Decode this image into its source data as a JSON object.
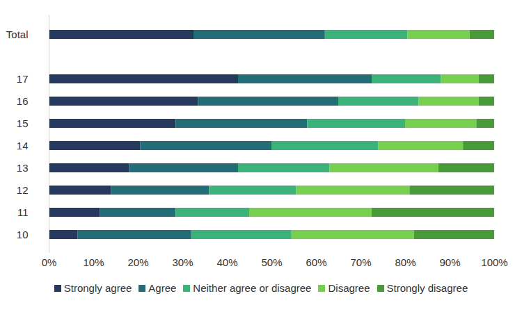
{
  "chart_data": {
    "type": "bar",
    "orientation": "horizontal",
    "stacked": true,
    "grid": false,
    "legend": "bottom",
    "categories": [
      "Total",
      null,
      "17",
      "16",
      "15",
      "14",
      "13",
      "12",
      "11",
      "10"
    ],
    "xlim": [
      0,
      100
    ],
    "xticks": [
      {
        "value": 0,
        "label": "0%"
      },
      {
        "value": 10,
        "label": "10%"
      },
      {
        "value": 20,
        "label": "20%"
      },
      {
        "value": 30,
        "label": "30%"
      },
      {
        "value": 40,
        "label": "40%"
      },
      {
        "value": 50,
        "label": "50%"
      },
      {
        "value": 60,
        "label": "60%"
      },
      {
        "value": 70,
        "label": "70%"
      },
      {
        "value": 80,
        "label": "80%"
      },
      {
        "value": 90,
        "label": "90%"
      },
      {
        "value": 100,
        "label": "100%"
      }
    ],
    "series": [
      {
        "name": "Strongly agree",
        "color": "#263a5e",
        "values": [
          32.5,
          null,
          42.5,
          33.5,
          28.5,
          20.5,
          18,
          14,
          11.5,
          6.5
        ]
      },
      {
        "name": "Agree",
        "color": "#236e76",
        "values": [
          29.5,
          null,
          30,
          31.5,
          29.5,
          29.5,
          24.5,
          22,
          17,
          25.5
        ]
      },
      {
        "name": "Neither agree or disagree",
        "color": "#3bb37a",
        "values": [
          18.5,
          null,
          15.5,
          18,
          22,
          24,
          20.5,
          19.5,
          16.5,
          22.5
        ]
      },
      {
        "name": "Disagree",
        "color": "#78cf4f",
        "values": [
          14,
          null,
          8.5,
          13.5,
          16,
          19,
          24.5,
          25.5,
          27.5,
          27.5
        ]
      },
      {
        "name": "Strongly disagree",
        "color": "#4a9a3a",
        "values": [
          5.5,
          null,
          3.5,
          3.5,
          4,
          7,
          12.5,
          19,
          27.5,
          18
        ]
      }
    ]
  }
}
